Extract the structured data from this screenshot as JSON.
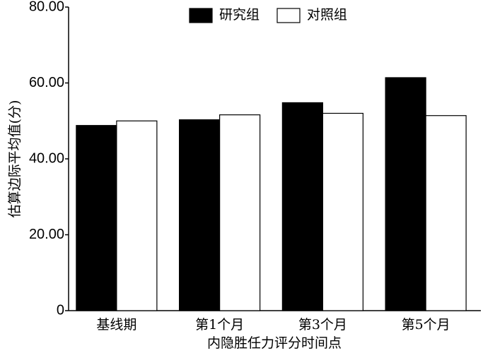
{
  "chart_data": {
    "type": "bar",
    "xlabel": "内隐胜任力评分时间点",
    "ylabel": "估算边际平均值(分)",
    "categories": [
      "基线期",
      "第1个月",
      "第3个月",
      "第5个月"
    ],
    "series": [
      {
        "name": "研究组",
        "color": "#000000",
        "values": [
          48.8,
          50.3,
          54.8,
          61.4
        ]
      },
      {
        "name": "对照组",
        "color": "#ffffff",
        "values": [
          50.0,
          51.6,
          52.0,
          51.4
        ]
      }
    ],
    "ylim": [
      0,
      80
    ],
    "yticks": [
      0,
      {
        "value": 20,
        "label": "20.00"
      },
      {
        "value": 40,
        "label": "40.00"
      },
      {
        "value": 60,
        "label": "60.00"
      },
      {
        "value": 80,
        "label": "80.00"
      }
    ],
    "legend": "top"
  }
}
